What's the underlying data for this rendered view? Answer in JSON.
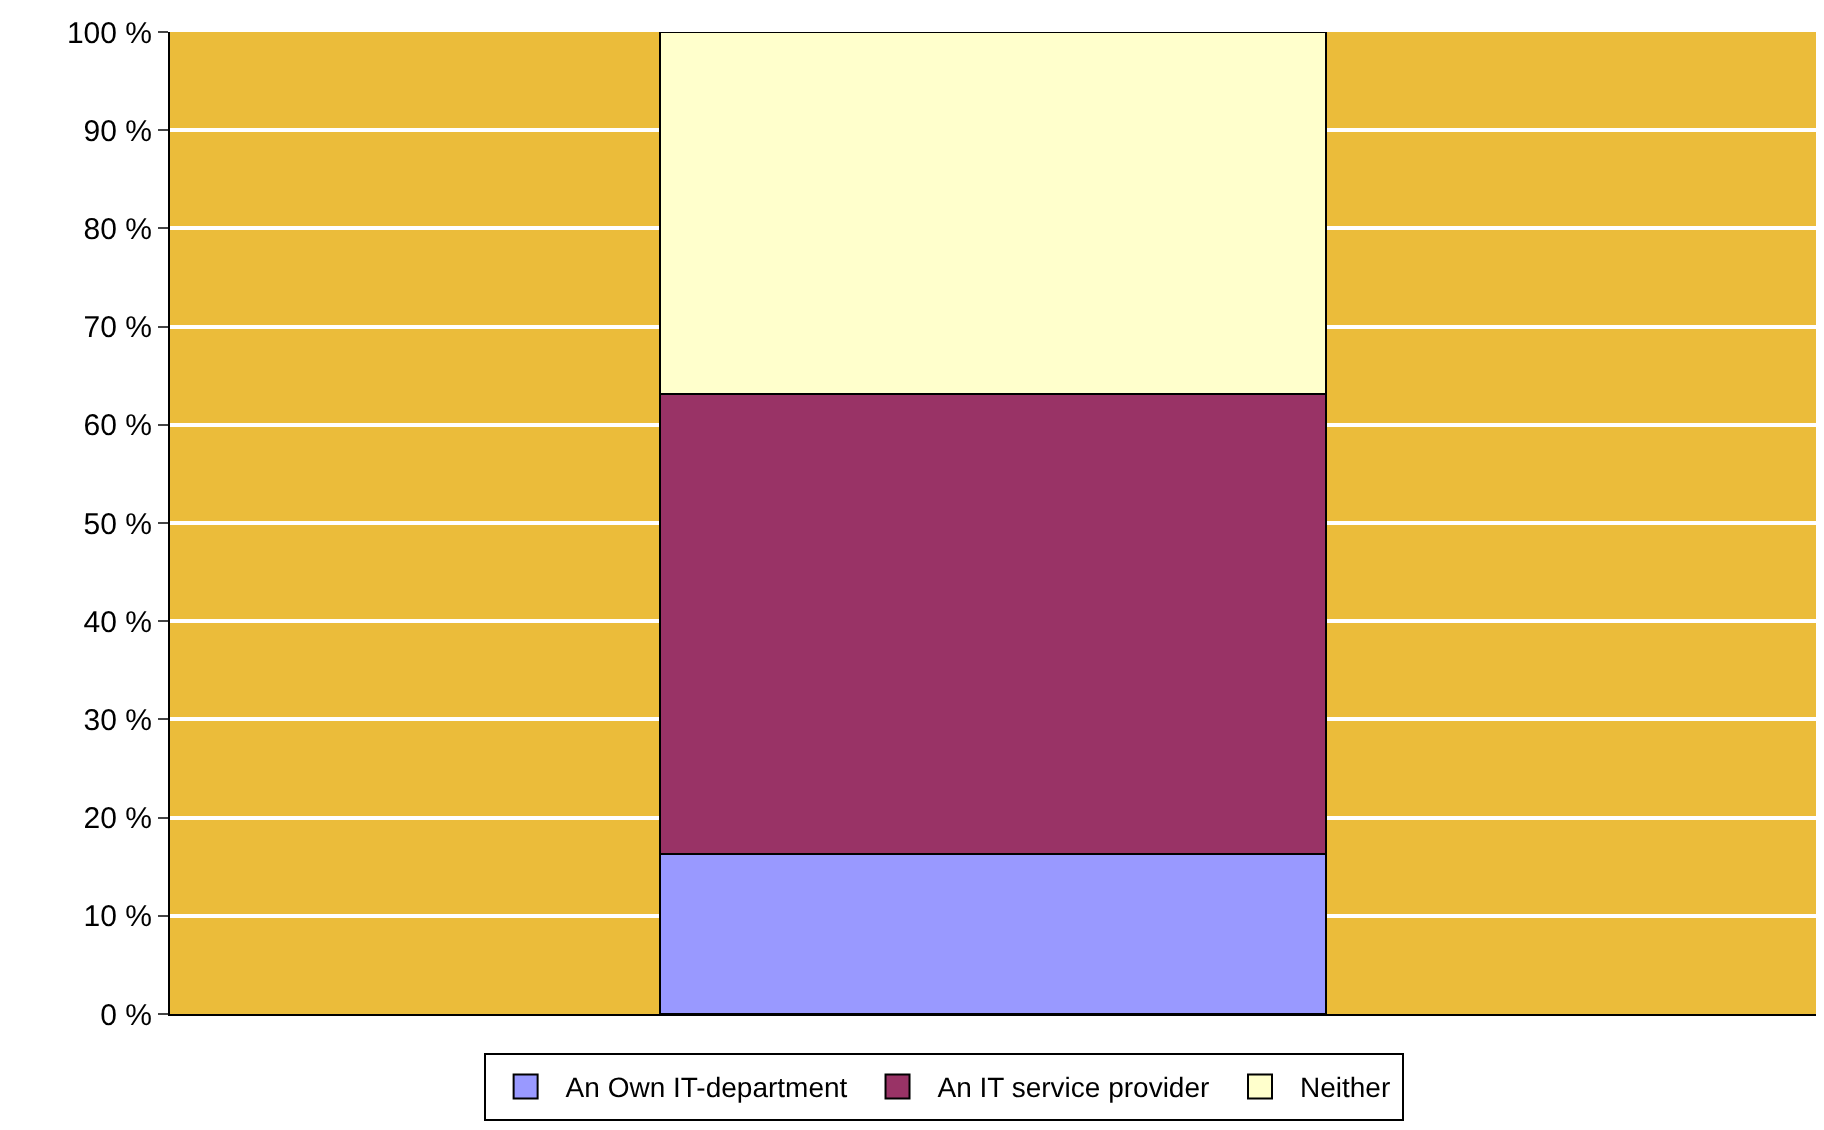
{
  "chart_data": {
    "type": "bar",
    "stacked": true,
    "categories": [
      null
    ],
    "series": [
      {
        "name": "An Own IT-department",
        "color": "#9999ff",
        "values": [
          16.3
        ]
      },
      {
        "name": "An IT service provider",
        "color": "#993366",
        "values": [
          46.8
        ]
      },
      {
        "name": "Neither",
        "color": "#ffffcc",
        "values": [
          36.9
        ]
      }
    ],
    "ylim": [
      0,
      100
    ],
    "yticks": [
      {
        "value": 0,
        "label": "0 %"
      },
      {
        "value": 10,
        "label": "10 %"
      },
      {
        "value": 20,
        "label": "20 %"
      },
      {
        "value": 30,
        "label": "30 %"
      },
      {
        "value": 40,
        "label": "40 %"
      },
      {
        "value": 50,
        "label": "50 %"
      },
      {
        "value": 60,
        "label": "60 %"
      },
      {
        "value": 70,
        "label": "70 %"
      },
      {
        "value": 80,
        "label": "80 %"
      },
      {
        "value": 90,
        "label": "90 %"
      },
      {
        "value": 100,
        "label": "100 %"
      }
    ],
    "grid": "y",
    "legend": "bottom",
    "tick_labels": "y"
  }
}
